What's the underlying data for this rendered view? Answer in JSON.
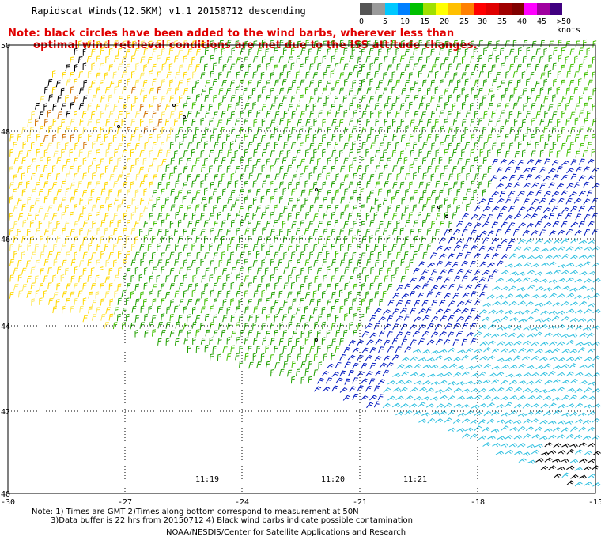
{
  "header": {
    "title": "Rapidscat Winds(12.5KM) v1.1 20150712 descending",
    "note_line1": "Note: black circles have been added to the wind barbs, wherever less than",
    "note_line2": "optimal wind retrieval conditions are met due to the ISS attitude changes."
  },
  "legend": {
    "labels": [
      "0",
      "5",
      "10",
      "15",
      "20",
      "25",
      "30",
      "35",
      "40",
      "45",
      ">50 knots"
    ],
    "colors": [
      "#555555",
      "#9a9a9a",
      "#00c8ff",
      "#0080ff",
      "#00c000",
      "#a0e000",
      "#ffff00",
      "#ffc000",
      "#ff8000",
      "#ff0000",
      "#e00000",
      "#a00000",
      "#800000",
      "#ff00ff",
      "#a000a0",
      "#400080"
    ]
  },
  "map": {
    "lat_labels": [
      "50",
      "48",
      "46",
      "44",
      "42",
      "40"
    ],
    "lon_labels": [
      "-30",
      "-27",
      "-24",
      "-21",
      "-18",
      "-15"
    ],
    "times": [
      "11:19",
      "11:20",
      "11:21"
    ],
    "barb_colors": {
      "yellow": "#ffd800",
      "yellow_light": "#ffe95a",
      "orange": "#d07000",
      "green": "#20a000",
      "green_bright": "#40c000",
      "blue": "#0018c0",
      "cyan": "#30c0e0",
      "black": "#000000"
    }
  },
  "footer": {
    "line1": "Note: 1) Times are GMT 2)Times along bottom correspond to measurement at 50N",
    "line2": "3)Data buffer is 22 hrs from 20150712 4) Black wind barbs indicate possible contamination",
    "line3": "NOAA/NESDIS/Center for Satellite Applications and Research"
  }
}
